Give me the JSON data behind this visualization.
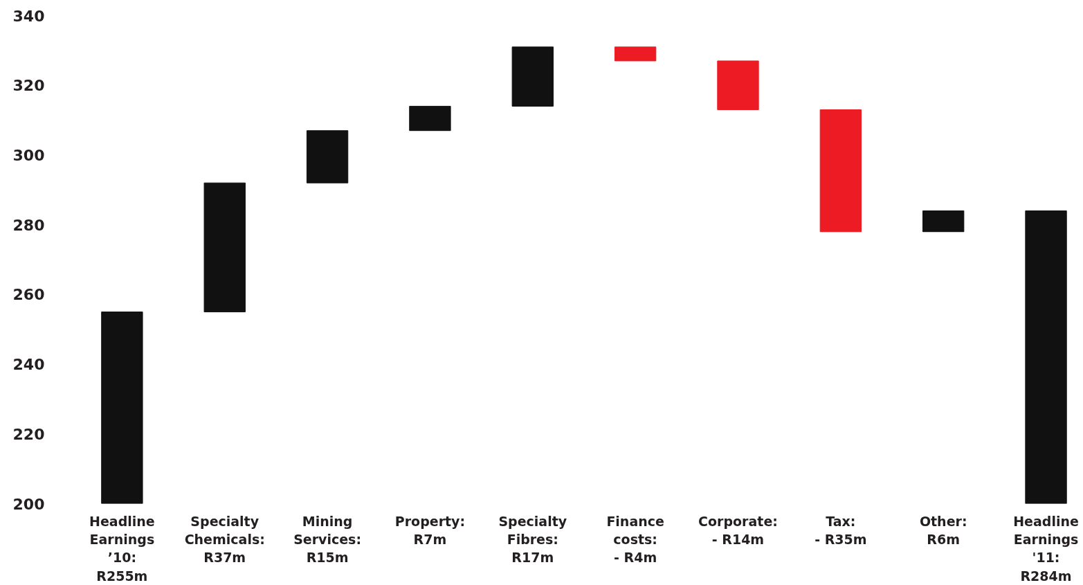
{
  "chart_data": {
    "type": "bar",
    "categories": [
      "Headline\nEarnings\n’10:\nR255m",
      "Specialty\nChemicals:\nR37m",
      "Mining\nServices:\nR15m",
      "Property:\nR7m",
      "Specialty\nFibres:\nR17m",
      "Finance\ncosts:\n- R4m",
      "Corporate:\n- R14m",
      "Tax:\n- R35m",
      "Other:\nR6m",
      "Headline\nEarnings\n'11:\nR284m"
    ],
    "base": [
      200,
      255,
      292,
      307,
      314,
      331,
      327,
      313,
      278,
      200
    ],
    "values": [
      55,
      37,
      15,
      7,
      17,
      -4,
      -14,
      -35,
      6,
      84
    ],
    "colors": [
      "#111111",
      "#111111",
      "#111111",
      "#111111",
      "#111111",
      "#ed1c24",
      "#ed1c24",
      "#ed1c24",
      "#111111",
      "#111111"
    ],
    "ylim": [
      200,
      340
    ],
    "yticks": [
      200,
      220,
      240,
      260,
      280,
      300,
      320,
      340
    ],
    "grid": false
  }
}
